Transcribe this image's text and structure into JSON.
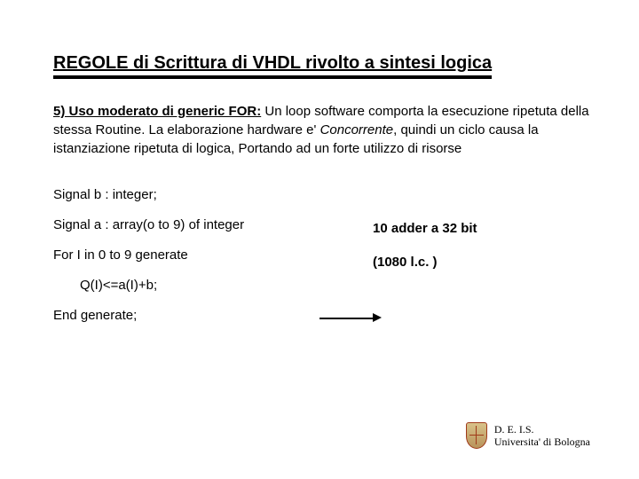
{
  "title": "REGOLE di Scrittura di VHDL rivolto a sintesi logica",
  "para": {
    "intro": "5) Uso moderato di generic FOR:",
    "seg1": " Un loop software comporta la esecuzione ripetuta della stessa Routine. La elaborazione hardware e' ",
    "italic": "Concorrente",
    "seg2": ", quindi un ciclo causa la istanziazione ripetuta di logica, Portando ad un forte utilizzo di risorse"
  },
  "code": {
    "l1": "Signal b : integer;",
    "l2": "Signal a : array(o to 9) of integer",
    "l3": "For I in 0 to 9 generate",
    "l4": "Q(I)<=a(I)+b;",
    "l5": "End generate;"
  },
  "result": {
    "r1": "10 adder a 32 bit",
    "r2": "(1080 l.c. )"
  },
  "footer": {
    "line1": "D. E. I.S.",
    "line2": "Universita' di Bologna"
  },
  "colors": {
    "text": "#000000",
    "background": "#ffffff",
    "crest_border": "#a03a1a"
  }
}
